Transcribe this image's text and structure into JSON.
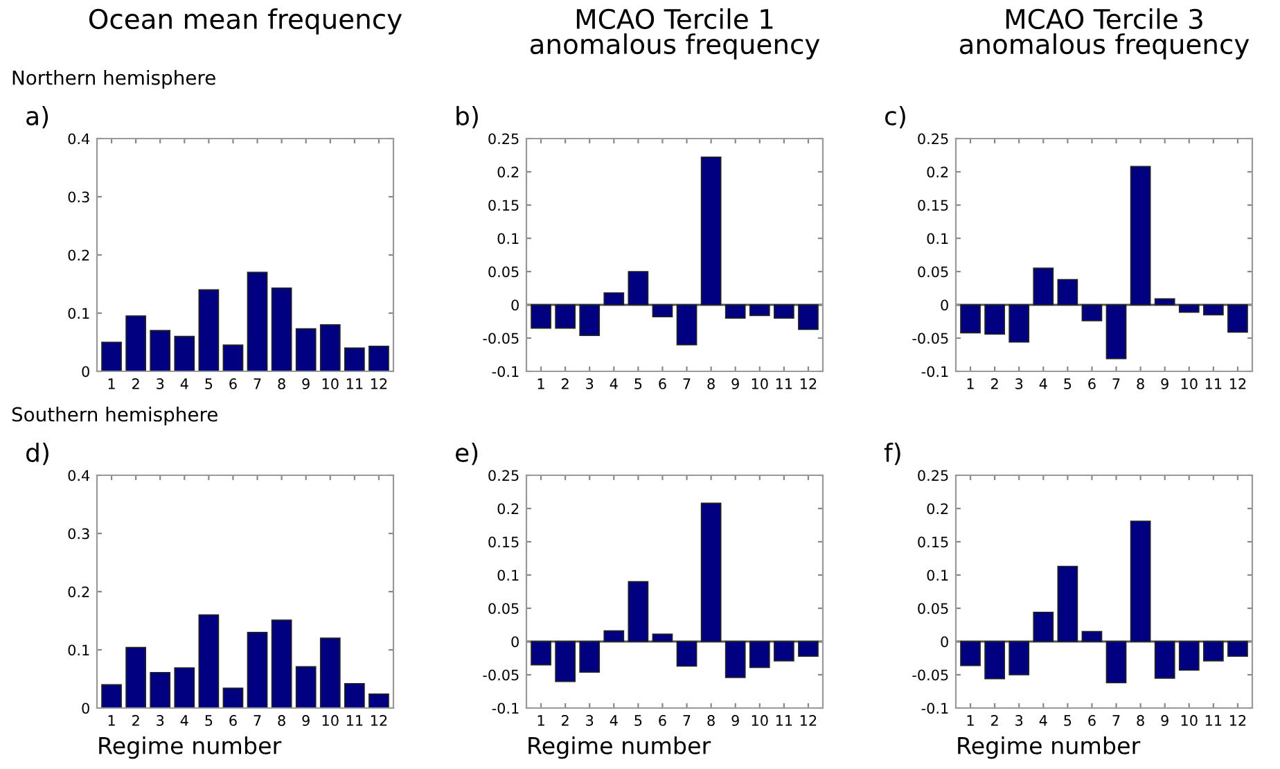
{
  "chart_data": [
    {
      "type": "bar",
      "title": "Ocean mean frequency",
      "subtitle": "Northern hemisphere",
      "annotations": [
        "a)"
      ],
      "categories": [
        "1",
        "2",
        "3",
        "4",
        "5",
        "6",
        "7",
        "8",
        "9",
        "10",
        "11",
        "12"
      ],
      "color": "#000080",
      "values": [
        0.05,
        0.095,
        0.07,
        0.06,
        0.14,
        0.045,
        0.17,
        0.143,
        0.073,
        0.08,
        0.04,
        0.043
      ],
      "ylim": [
        0,
        0.4
      ],
      "yticks": [
        0,
        0.1,
        0.2,
        0.3,
        0.4
      ],
      "grid": false
    },
    {
      "type": "bar",
      "title": "MCAO Tercile 1\nanomalous frequency",
      "annotations": [
        "b)"
      ],
      "categories": [
        "1",
        "2",
        "3",
        "4",
        "5",
        "6",
        "7",
        "8",
        "9",
        "10",
        "11",
        "12"
      ],
      "color": "#000080",
      "values": [
        -0.035,
        -0.035,
        -0.046,
        0.018,
        0.05,
        -0.018,
        -0.06,
        0.222,
        -0.02,
        -0.016,
        -0.02,
        -0.037
      ],
      "ylim": [
        -0.1,
        0.25
      ],
      "yticks": [
        -0.1,
        -0.05,
        0,
        0.05,
        0.1,
        0.15,
        0.2,
        0.25
      ],
      "ref_lines": [
        {
          "axis": "y",
          "value": 0,
          "color": "#555555"
        }
      ],
      "grid": false
    },
    {
      "type": "bar",
      "title": "MCAO Tercile 3\nanomalous frequency",
      "annotations": [
        "c)"
      ],
      "categories": [
        "1",
        "2",
        "3",
        "4",
        "5",
        "6",
        "7",
        "8",
        "9",
        "10",
        "11",
        "12"
      ],
      "color": "#000080",
      "values": [
        -0.042,
        -0.044,
        -0.056,
        0.055,
        0.038,
        -0.024,
        -0.081,
        0.208,
        0.009,
        -0.011,
        -0.015,
        -0.041
      ],
      "ylim": [
        -0.1,
        0.25
      ],
      "yticks": [
        -0.1,
        -0.05,
        0,
        0.05,
        0.1,
        0.15,
        0.2,
        0.25
      ],
      "ref_lines": [
        {
          "axis": "y",
          "value": 0,
          "color": "#555555"
        }
      ],
      "grid": false
    },
    {
      "type": "bar",
      "subtitle": "Southern hemisphere",
      "xlabel": "Regime number",
      "annotations": [
        "d)"
      ],
      "categories": [
        "1",
        "2",
        "3",
        "4",
        "5",
        "6",
        "7",
        "8",
        "9",
        "10",
        "11",
        "12"
      ],
      "color": "#000080",
      "values": [
        0.04,
        0.104,
        0.061,
        0.069,
        0.16,
        0.034,
        0.13,
        0.151,
        0.071,
        0.12,
        0.042,
        0.024
      ],
      "ylim": [
        0,
        0.4
      ],
      "yticks": [
        0,
        0.1,
        0.2,
        0.3,
        0.4
      ],
      "grid": false
    },
    {
      "type": "bar",
      "xlabel": "Regime number",
      "annotations": [
        "e)"
      ],
      "categories": [
        "1",
        "2",
        "3",
        "4",
        "5",
        "6",
        "7",
        "8",
        "9",
        "10",
        "11",
        "12"
      ],
      "color": "#000080",
      "values": [
        -0.035,
        -0.06,
        -0.046,
        0.016,
        0.09,
        0.011,
        -0.037,
        0.208,
        -0.054,
        -0.039,
        -0.029,
        -0.022
      ],
      "ylim": [
        -0.1,
        0.25
      ],
      "yticks": [
        -0.1,
        -0.05,
        0,
        0.05,
        0.1,
        0.15,
        0.2,
        0.25
      ],
      "ref_lines": [
        {
          "axis": "y",
          "value": 0,
          "color": "#555555"
        }
      ],
      "grid": false
    },
    {
      "type": "bar",
      "xlabel": "Regime number",
      "annotations": [
        "f)"
      ],
      "categories": [
        "1",
        "2",
        "3",
        "4",
        "5",
        "6",
        "7",
        "8",
        "9",
        "10",
        "11",
        "12"
      ],
      "color": "#000080",
      "values": [
        -0.036,
        -0.056,
        -0.05,
        0.044,
        0.113,
        0.015,
        -0.062,
        0.181,
        -0.055,
        -0.043,
        -0.029,
        -0.022
      ],
      "ylim": [
        -0.1,
        0.25
      ],
      "yticks": [
        -0.1,
        -0.05,
        0,
        0.05,
        0.1,
        0.15,
        0.2,
        0.25
      ],
      "ref_lines": [
        {
          "axis": "y",
          "value": 0,
          "color": "#555555"
        }
      ],
      "grid": false
    }
  ]
}
